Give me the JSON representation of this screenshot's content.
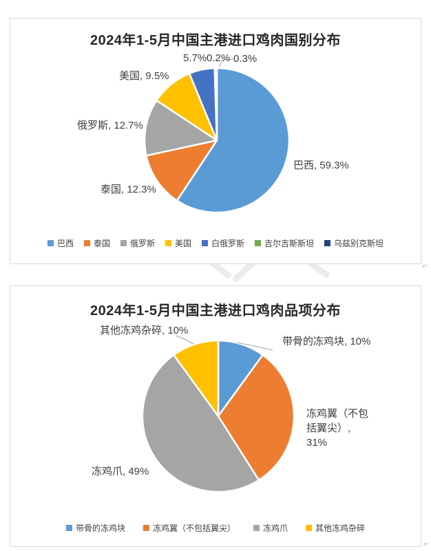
{
  "chart_data": [
    {
      "type": "pie",
      "title": "2024年1-5月中国主港进口鸡肉国别分布",
      "categories": [
        "巴西",
        "泰国",
        "俄罗斯",
        "美国",
        "白俄罗斯",
        "吉尔吉斯斯坦",
        "乌兹别克斯坦"
      ],
      "values": [
        59.3,
        12.3,
        12.7,
        9.5,
        5.7,
        0.2,
        0.3
      ],
      "unit": "%",
      "colors": [
        "#5B9BD5",
        "#ED7D31",
        "#A5A5A5",
        "#FFC000",
        "#4472C4",
        "#70AD47",
        "#264478"
      ],
      "start_angle": 0,
      "direction": "clockwise",
      "legend_position": "bottom",
      "data_labels": [
        "巴西, 59.3%",
        "泰国, 12.3%",
        "俄罗斯, 12.7%",
        "美国, 9.5%",
        "5.7%",
        "0.2%",
        "0.3%"
      ]
    },
    {
      "type": "pie",
      "title": "2024年1-5月中国主港进口鸡肉品项分布",
      "categories": [
        "带骨的冻鸡块",
        "冻鸡翼（不包括翼尖）",
        "冻鸡爪",
        "其他冻鸡杂碎"
      ],
      "values": [
        10,
        31,
        49,
        10
      ],
      "unit": "%",
      "colors": [
        "#5B9BD5",
        "#ED7D31",
        "#A5A5A5",
        "#FFC000"
      ],
      "start_angle": 0,
      "direction": "clockwise",
      "legend_position": "bottom",
      "data_labels": [
        "带骨的冻鸡块, 10%",
        "冻鸡翼（不包括翼尖）, 31%",
        "冻鸡爪, 49%",
        "其他冻鸡杂碎, 10%"
      ]
    }
  ],
  "styles": {
    "slice_border": "#FFFFFF",
    "leader_line": "#9E9E9E",
    "title_color": "#262626",
    "label_color": "#404040",
    "card_border": "#D9D9D9"
  }
}
